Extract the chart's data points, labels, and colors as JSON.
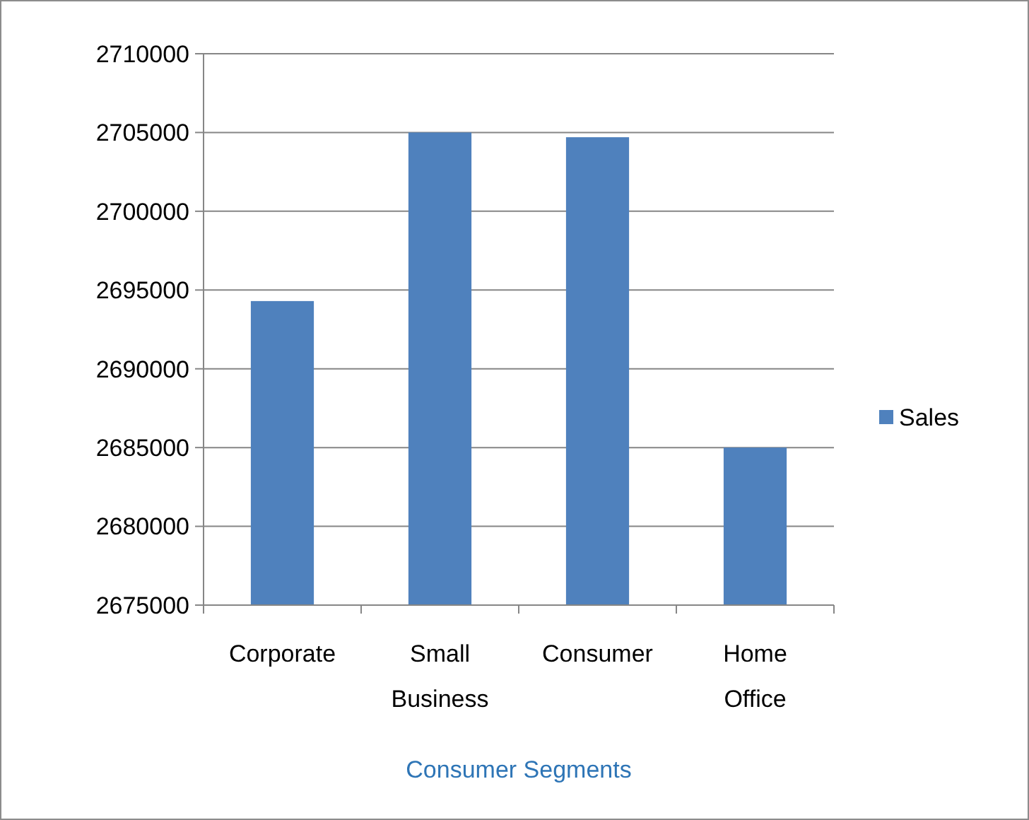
{
  "chart_data": {
    "type": "bar",
    "xlabel": "Consumer Segments",
    "categories": [
      "Corporate",
      "Small Business",
      "Consumer",
      "Home Office"
    ],
    "series": [
      {
        "name": "Sales",
        "color": "#4f81bd",
        "values": [
          2694300,
          2705000,
          2704700,
          2685000
        ]
      }
    ],
    "ylim": [
      2675000,
      2710000
    ],
    "yticks": [
      2675000,
      2680000,
      2685000,
      2690000,
      2695000,
      2700000,
      2705000,
      2710000
    ],
    "grid": "y",
    "legend": "right"
  }
}
